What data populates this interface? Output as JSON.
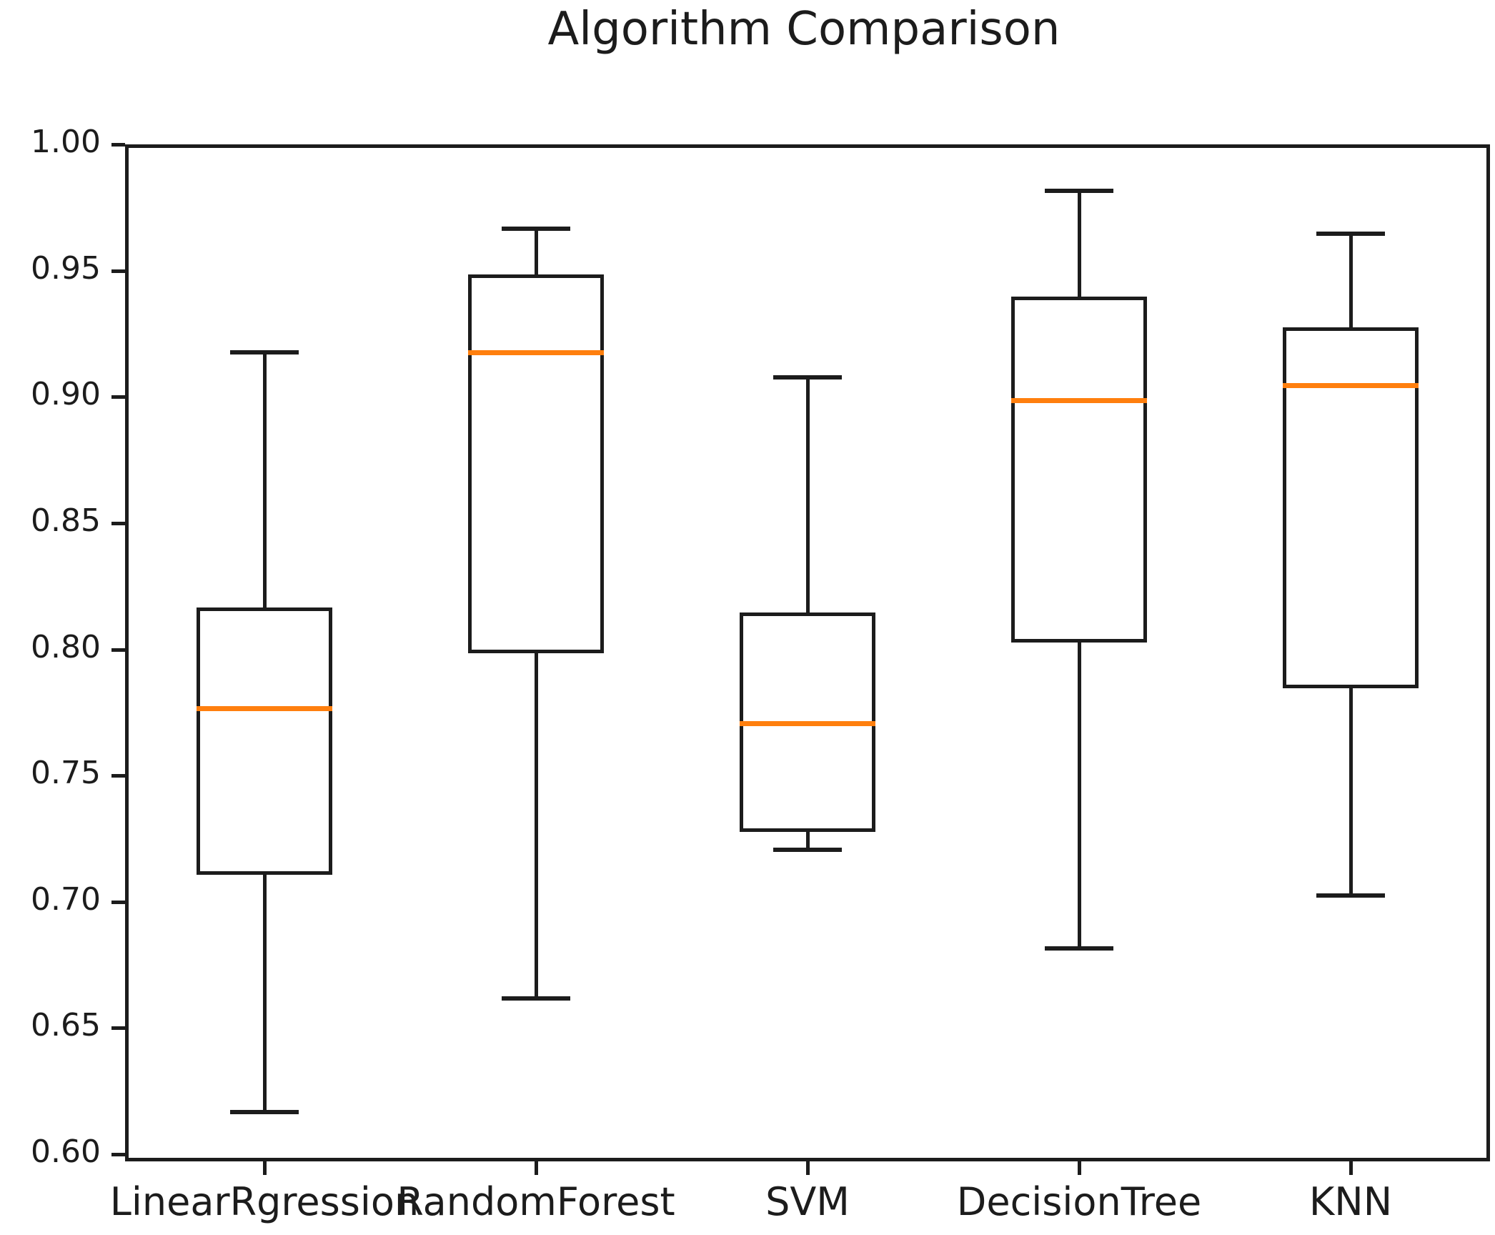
{
  "chart_data": {
    "type": "boxplot",
    "title": "Algorithm Comparison",
    "categories": [
      "LinearRgression",
      "RandomForest",
      "SVM",
      "DecisionTree",
      "KNN"
    ],
    "boxes": [
      {
        "label": "LinearRgression",
        "whisker_low": 0.618,
        "q1": 0.712,
        "median": 0.778,
        "q3": 0.818,
        "whisker_high": 0.919
      },
      {
        "label": "RandomForest",
        "whisker_low": 0.663,
        "q1": 0.8,
        "median": 0.919,
        "q3": 0.95,
        "whisker_high": 0.968
      },
      {
        "label": "SVM",
        "whisker_low": 0.722,
        "q1": 0.729,
        "median": 0.772,
        "q3": 0.816,
        "whisker_high": 0.909
      },
      {
        "label": "DecisionTree",
        "whisker_low": 0.683,
        "q1": 0.804,
        "median": 0.9,
        "q3": 0.941,
        "whisker_high": 0.983
      },
      {
        "label": "KNN",
        "whisker_low": 0.704,
        "q1": 0.786,
        "median": 0.906,
        "q3": 0.929,
        "whisker_high": 0.966
      }
    ],
    "ylim": [
      0.6,
      1.0
    ],
    "ytick_labels": [
      "1.00",
      "0.95",
      "0.90",
      "0.85",
      "0.80",
      "0.75",
      "0.70",
      "0.65",
      "0.60"
    ],
    "xlabel": "",
    "ylabel": "",
    "grid": false,
    "legend": "none",
    "colors": {
      "median": "#ff7f0e",
      "line": "#1c1c1c",
      "background": "#ffffff"
    }
  }
}
